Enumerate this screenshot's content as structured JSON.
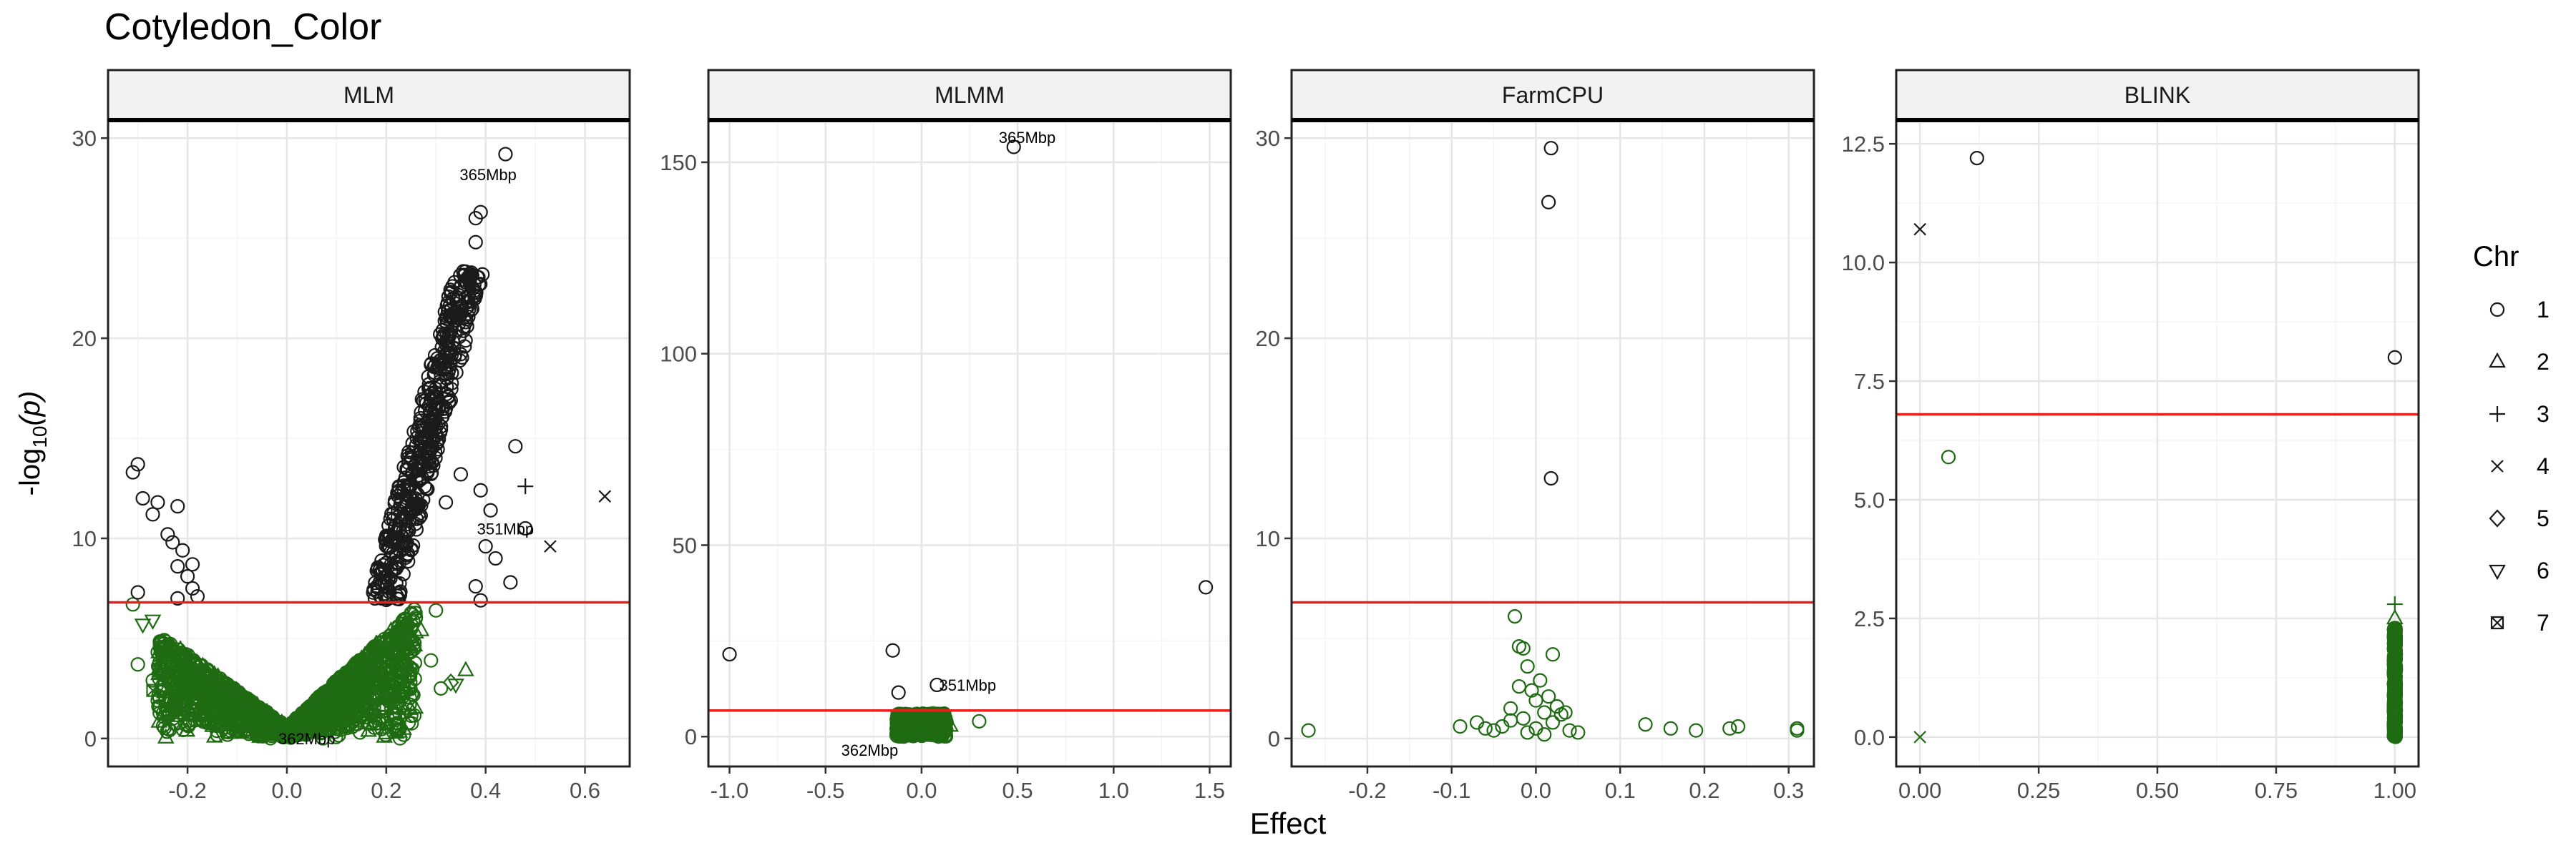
{
  "figure": {
    "title": "Cotyledon_Color",
    "xlabel": "Effect",
    "ylabel_prefix": "-log",
    "ylabel_sub": "10",
    "ylabel_suffix": "(p)",
    "legend_title": "Chr",
    "legend_items": [
      {
        "label": "1",
        "shape": "circle-open"
      },
      {
        "label": "2",
        "shape": "triangle-open"
      },
      {
        "label": "3",
        "shape": "plus"
      },
      {
        "label": "4",
        "shape": "cross"
      },
      {
        "label": "5",
        "shape": "diamond-open"
      },
      {
        "label": "6",
        "shape": "triangle-down-open"
      },
      {
        "label": "7",
        "shape": "square-cross"
      }
    ],
    "colors": {
      "significant": "#1a1a1a",
      "nonsignificant": "#1e6b12",
      "threshold": "#e8201c",
      "strip": "#f2f2f2",
      "grid_major": "#e6e6e6",
      "grid_minor": "#f4f4f4"
    }
  },
  "chart_data": [
    {
      "type": "scatter",
      "panel": "MLM",
      "xlim": [
        -0.36,
        0.69
      ],
      "ylim": [
        -1.4,
        30.9
      ],
      "xticks": [
        -0.2,
        0.0,
        0.2,
        0.4,
        0.6
      ],
      "xtick_labels": [
        "-0.2",
        "0.0",
        "0.2",
        "0.4",
        "0.6"
      ],
      "yticks": [
        0,
        10,
        20,
        30
      ],
      "ytick_labels": [
        "0",
        "10",
        "20",
        "30"
      ],
      "threshold": 6.8,
      "grid": true,
      "points_significant": [
        {
          "x": 0.44,
          "y": 29.2,
          "chr": 1
        },
        {
          "x": 0.39,
          "y": 26.3,
          "chr": 1
        },
        {
          "x": 0.38,
          "y": 26.0,
          "chr": 1
        },
        {
          "x": 0.38,
          "y": 24.8,
          "chr": 1
        },
        {
          "x": 0.37,
          "y": 23.2,
          "chr": 1
        },
        {
          "x": 0.36,
          "y": 22.0,
          "chr": 1
        },
        {
          "x": 0.35,
          "y": 21.2,
          "chr": 1
        },
        {
          "x": 0.34,
          "y": 20.4,
          "chr": 1
        },
        {
          "x": 0.33,
          "y": 19.4,
          "chr": 1
        },
        {
          "x": 0.32,
          "y": 18.5,
          "chr": 1
        },
        {
          "x": 0.31,
          "y": 17.6,
          "chr": 1
        },
        {
          "x": 0.3,
          "y": 16.7,
          "chr": 1
        },
        {
          "x": 0.29,
          "y": 15.6,
          "chr": 1
        },
        {
          "x": 0.28,
          "y": 14.7,
          "chr": 1
        },
        {
          "x": 0.27,
          "y": 13.8,
          "chr": 1
        },
        {
          "x": 0.26,
          "y": 12.9,
          "chr": 1
        },
        {
          "x": 0.25,
          "y": 12.0,
          "chr": 1
        },
        {
          "x": 0.24,
          "y": 11.0,
          "chr": 1
        },
        {
          "x": 0.23,
          "y": 10.1,
          "chr": 1
        },
        {
          "x": 0.22,
          "y": 9.2,
          "chr": 1
        },
        {
          "x": 0.21,
          "y": 8.4,
          "chr": 1
        },
        {
          "x": 0.2,
          "y": 7.6,
          "chr": 1
        },
        {
          "x": 0.19,
          "y": 7.0,
          "chr": 1
        },
        {
          "x": 0.46,
          "y": 14.6,
          "chr": 1
        },
        {
          "x": 0.39,
          "y": 12.4,
          "chr": 1
        },
        {
          "x": 0.41,
          "y": 11.4,
          "chr": 1
        },
        {
          "x": 0.48,
          "y": 10.5,
          "chr": 1
        },
        {
          "x": 0.42,
          "y": 9.0,
          "chr": 1
        },
        {
          "x": 0.4,
          "y": 9.6,
          "chr": 1
        },
        {
          "x": 0.38,
          "y": 7.6,
          "chr": 1
        },
        {
          "x": 0.45,
          "y": 7.8,
          "chr": 1
        },
        {
          "x": 0.39,
          "y": 6.9,
          "chr": 1
        },
        {
          "x": 0.35,
          "y": 13.2,
          "chr": 1
        },
        {
          "x": 0.32,
          "y": 11.8,
          "chr": 1
        },
        {
          "x": -0.3,
          "y": 13.7,
          "chr": 1
        },
        {
          "x": -0.31,
          "y": 13.3,
          "chr": 1
        },
        {
          "x": -0.29,
          "y": 12.0,
          "chr": 1
        },
        {
          "x": -0.26,
          "y": 11.8,
          "chr": 1
        },
        {
          "x": -0.27,
          "y": 11.2,
          "chr": 1
        },
        {
          "x": -0.22,
          "y": 11.6,
          "chr": 1
        },
        {
          "x": -0.24,
          "y": 10.2,
          "chr": 1
        },
        {
          "x": -0.23,
          "y": 9.8,
          "chr": 1
        },
        {
          "x": -0.21,
          "y": 9.4,
          "chr": 1
        },
        {
          "x": -0.22,
          "y": 8.6,
          "chr": 1
        },
        {
          "x": -0.19,
          "y": 8.7,
          "chr": 1
        },
        {
          "x": -0.2,
          "y": 8.1,
          "chr": 1
        },
        {
          "x": -0.19,
          "y": 7.5,
          "chr": 1
        },
        {
          "x": -0.18,
          "y": 7.1,
          "chr": 1
        },
        {
          "x": -0.22,
          "y": 7.0,
          "chr": 1
        },
        {
          "x": -0.3,
          "y": 7.3,
          "chr": 1
        },
        {
          "x": 0.48,
          "y": 12.6,
          "chr": 3
        },
        {
          "x": 0.64,
          "y": 12.1,
          "chr": 4
        },
        {
          "x": 0.53,
          "y": 9.6,
          "chr": 4
        }
      ],
      "points_nonsignificant": [
        {
          "x": -0.31,
          "y": 6.7,
          "chr": 1
        },
        {
          "x": -0.29,
          "y": 5.7,
          "chr": 6
        },
        {
          "x": -0.27,
          "y": 5.9,
          "chr": 6
        },
        {
          "x": -0.3,
          "y": 3.7,
          "chr": 1
        },
        {
          "x": -0.27,
          "y": 2.9,
          "chr": 1
        },
        {
          "x": -0.27,
          "y": 2.4,
          "chr": 7
        },
        {
          "x": -0.24,
          "y": 3.9,
          "chr": 2
        },
        {
          "x": -0.26,
          "y": 1.9,
          "chr": 1
        },
        {
          "x": 0.36,
          "y": 3.4,
          "chr": 2
        },
        {
          "x": 0.33,
          "y": 2.8,
          "chr": 5
        },
        {
          "x": 0.31,
          "y": 2.5,
          "chr": 1
        },
        {
          "x": 0.34,
          "y": 2.7,
          "chr": 6
        },
        {
          "x": 0.29,
          "y": 3.9,
          "chr": 1
        },
        {
          "x": 0.27,
          "y": 5.4,
          "chr": 2
        },
        {
          "x": 0.25,
          "y": 6.2,
          "chr": 1
        },
        {
          "x": 0.3,
          "y": 6.4,
          "chr": 1
        },
        {
          "x": 0.22,
          "y": 1.6,
          "chr": 5
        }
      ],
      "nonsig_cloud": {
        "x_center": 0.0,
        "slope_left": 18.0,
        "slope_right": 23.0,
        "x_range": [
          -0.26,
          0.26
        ]
      },
      "annotations": [
        {
          "label": "365Mbp",
          "x": 0.405,
          "y": 27.9
        },
        {
          "label": "351Mbp",
          "x": 0.44,
          "y": 10.2
        },
        {
          "label": "362Mbp",
          "x": 0.04,
          "y": -0.3
        }
      ]
    },
    {
      "type": "scatter",
      "panel": "MLMM",
      "xlim": [
        -1.11,
        1.61
      ],
      "ylim": [
        -7.8,
        161
      ],
      "xticks": [
        -1.0,
        -0.5,
        0.0,
        0.5,
        1.0,
        1.5
      ],
      "xtick_labels": [
        "-1.0",
        "-0.5",
        "0.0",
        "0.5",
        "1.0",
        "1.5"
      ],
      "yticks": [
        0,
        50,
        100,
        150
      ],
      "ytick_labels": [
        "0",
        "50",
        "100",
        "150"
      ],
      "threshold": 6.8,
      "grid": true,
      "points_significant": [
        {
          "x": 0.48,
          "y": 154.0,
          "chr": 1
        },
        {
          "x": 1.48,
          "y": 39.0,
          "chr": 1
        },
        {
          "x": -1.0,
          "y": 21.5,
          "chr": 1
        },
        {
          "x": -0.15,
          "y": 22.5,
          "chr": 1
        },
        {
          "x": -0.12,
          "y": 11.5,
          "chr": 1
        },
        {
          "x": 0.08,
          "y": 13.5,
          "chr": 1
        }
      ],
      "points_nonsignificant": [
        {
          "x": 0.3,
          "y": 4.0,
          "chr": 1
        },
        {
          "x": 0.1,
          "y": 5.5,
          "chr": 1
        },
        {
          "x": -0.11,
          "y": 5.0,
          "chr": 1
        },
        {
          "x": 0.15,
          "y": 2.8,
          "chr": 2
        }
      ],
      "nonsig_cloud": {
        "x_center": 0.0,
        "x_range": [
          -0.13,
          0.13
        ],
        "y_max": 6.0
      },
      "annotations": [
        {
          "label": "365Mbp",
          "x": 0.55,
          "y": 155.0
        },
        {
          "label": "351Mbp",
          "x": 0.24,
          "y": 12.0
        },
        {
          "label": "362Mbp",
          "x": -0.27,
          "y": -5.0
        }
      ]
    },
    {
      "type": "scatter",
      "panel": "FarmCPU",
      "xlim": [
        -0.29,
        0.33
      ],
      "ylim": [
        -1.4,
        30.9
      ],
      "xticks": [
        -0.2,
        -0.1,
        0.0,
        0.1,
        0.2,
        0.3
      ],
      "xtick_labels": [
        "-0.2",
        "-0.1",
        "0.0",
        "0.1",
        "0.2",
        "0.3"
      ],
      "yticks": [
        0,
        10,
        20,
        30
      ],
      "ytick_labels": [
        "0",
        "10",
        "20",
        "30"
      ],
      "threshold": 6.8,
      "grid": true,
      "points_significant": [
        {
          "x": 0.018,
          "y": 29.5,
          "chr": 1
        },
        {
          "x": 0.015,
          "y": 26.8,
          "chr": 1
        },
        {
          "x": 0.018,
          "y": 13.0,
          "chr": 1
        }
      ],
      "points_nonsignificant": [
        {
          "x": -0.27,
          "y": 0.4,
          "chr": 1
        },
        {
          "x": -0.09,
          "y": 0.6,
          "chr": 1
        },
        {
          "x": -0.07,
          "y": 0.8,
          "chr": 1
        },
        {
          "x": -0.06,
          "y": 0.5,
          "chr": 1
        },
        {
          "x": -0.05,
          "y": 0.4,
          "chr": 1
        },
        {
          "x": -0.04,
          "y": 0.6,
          "chr": 1
        },
        {
          "x": -0.03,
          "y": 0.9,
          "chr": 1
        },
        {
          "x": -0.025,
          "y": 6.1,
          "chr": 1
        },
        {
          "x": -0.02,
          "y": 4.6,
          "chr": 1
        },
        {
          "x": -0.015,
          "y": 4.5,
          "chr": 1
        },
        {
          "x": -0.01,
          "y": 3.6,
          "chr": 1
        },
        {
          "x": -0.02,
          "y": 2.6,
          "chr": 1
        },
        {
          "x": -0.005,
          "y": 2.4,
          "chr": 1
        },
        {
          "x": 0.0,
          "y": 1.9,
          "chr": 1
        },
        {
          "x": 0.005,
          "y": 2.9,
          "chr": 1
        },
        {
          "x": 0.01,
          "y": 1.3,
          "chr": 1
        },
        {
          "x": 0.015,
          "y": 2.1,
          "chr": 1
        },
        {
          "x": 0.02,
          "y": 4.2,
          "chr": 1
        },
        {
          "x": 0.025,
          "y": 1.6,
          "chr": 1
        },
        {
          "x": 0.03,
          "y": 1.2,
          "chr": 1
        },
        {
          "x": -0.01,
          "y": 0.3,
          "chr": 1
        },
        {
          "x": 0.0,
          "y": 0.5,
          "chr": 1
        },
        {
          "x": 0.01,
          "y": 0.2,
          "chr": 1
        },
        {
          "x": 0.04,
          "y": 0.4,
          "chr": 1
        },
        {
          "x": 0.05,
          "y": 0.3,
          "chr": 1
        },
        {
          "x": 0.13,
          "y": 0.7,
          "chr": 1
        },
        {
          "x": 0.16,
          "y": 0.5,
          "chr": 1
        },
        {
          "x": 0.19,
          "y": 0.4,
          "chr": 1
        },
        {
          "x": 0.23,
          "y": 0.5,
          "chr": 1
        },
        {
          "x": 0.24,
          "y": 0.6,
          "chr": 1
        },
        {
          "x": 0.31,
          "y": 0.5,
          "chr": 1
        },
        {
          "x": 0.31,
          "y": 0.4,
          "chr": 1
        },
        {
          "x": -0.03,
          "y": 1.5,
          "chr": 1
        },
        {
          "x": 0.035,
          "y": 1.3,
          "chr": 1
        },
        {
          "x": -0.015,
          "y": 1.0,
          "chr": 1
        },
        {
          "x": 0.02,
          "y": 0.8,
          "chr": 1
        }
      ],
      "annotations": []
    },
    {
      "type": "scatter",
      "panel": "BLINK",
      "xlim": [
        -0.05,
        1.05
      ],
      "ylim": [
        -0.62,
        13.0
      ],
      "xticks": [
        0.0,
        0.25,
        0.5,
        0.75,
        1.0
      ],
      "xtick_labels": [
        "0.00",
        "0.25",
        "0.50",
        "0.75",
        "1.00"
      ],
      "yticks": [
        0.0,
        2.5,
        5.0,
        7.5,
        10.0,
        12.5
      ],
      "ytick_labels": [
        "0.0",
        "2.5",
        "5.0",
        "7.5",
        "10.0",
        "12.5"
      ],
      "threshold": 6.8,
      "grid": true,
      "points_significant": [
        {
          "x": 0.12,
          "y": 12.2,
          "chr": 1
        },
        {
          "x": 0.0,
          "y": 10.7,
          "chr": 4
        },
        {
          "x": 1.0,
          "y": 8.0,
          "chr": 1
        }
      ],
      "points_nonsignificant": [
        {
          "x": 0.06,
          "y": 5.9,
          "chr": 1
        },
        {
          "x": 0.0,
          "y": 0.0,
          "chr": 4
        },
        {
          "x": 1.0,
          "y": 2.8,
          "chr": 3
        },
        {
          "x": 1.0,
          "y": 2.5,
          "chr": 2
        },
        {
          "x": 1.0,
          "y": 2.2,
          "chr": 1
        }
      ],
      "nonsig_cloud": {
        "x_center": 1.0,
        "y_range": [
          0.0,
          2.3
        ]
      },
      "annotations": []
    }
  ]
}
